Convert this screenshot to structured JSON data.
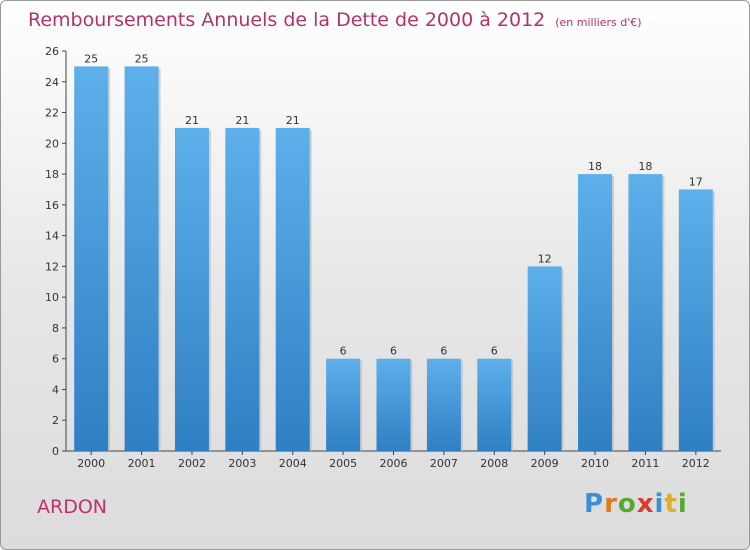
{
  "chart_data": {
    "type": "bar",
    "title": "Remboursements Annuels de la Dette de 2000 à 2012",
    "subtitle": "(en milliers d'€)",
    "categories": [
      "2000",
      "2001",
      "2002",
      "2003",
      "2004",
      "2005",
      "2006",
      "2007",
      "2008",
      "2009",
      "2010",
      "2011",
      "2012"
    ],
    "values": [
      25,
      25,
      21,
      21,
      21,
      6,
      6,
      6,
      6,
      12,
      18,
      18,
      17
    ],
    "ylim": [
      0,
      26
    ],
    "yticks": [
      0,
      2,
      4,
      6,
      8,
      10,
      12,
      14,
      16,
      18,
      20,
      22,
      24,
      26
    ],
    "grid": false,
    "bar_color": "#3d95d8"
  },
  "commune": "ARDON",
  "logo": {
    "text": "Proxiti",
    "colors": [
      "#3a8fd6",
      "#e07a20",
      "#5aa830",
      "#d93a2a",
      "#3a8fd6",
      "#e0b020",
      "#5aa830"
    ]
  }
}
